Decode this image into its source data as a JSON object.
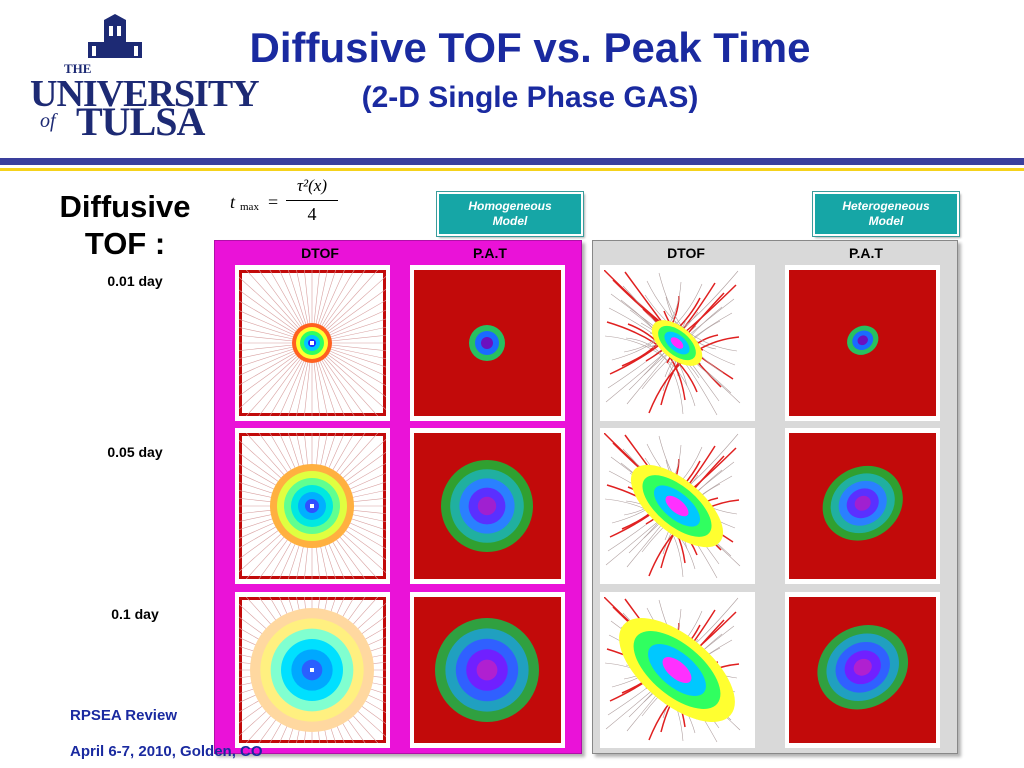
{
  "logo": {
    "the": "THE",
    "university": "UNIVERSITY",
    "of": "of",
    "tulsa": "TULSA"
  },
  "title": "Diffusive TOF vs. Peak Time",
  "subtitle": "(2-D Single Phase GAS)",
  "left_label": {
    "line1": "Diffusive",
    "line2": "TOF :"
  },
  "formula": {
    "lhs": "t",
    "lhs_sub": "max",
    "eq": "=",
    "numerator": "τ²(x)",
    "denominator": "4"
  },
  "models": {
    "homogeneous": {
      "line1": "Homogeneous",
      "line2": "Model"
    },
    "heterogeneous": {
      "line1": "Heterogeneous",
      "line2": "Model"
    }
  },
  "columns": {
    "dtof": "DTOF",
    "pat": "P.A.T"
  },
  "times": [
    "0.01 day",
    "0.05 day",
    "0.1 day"
  ],
  "footer": {
    "line1": "RPSEA Review",
    "line2": "April 6-7, 2010, Golden, CO"
  },
  "colors": {
    "title": "#1a2aa0",
    "homo_panel": "#ea12d8",
    "hetero_panel": "#d9d9d9",
    "badge": "#16a6a6",
    "field_red": "#c20a0a",
    "bar_blue": "#3a3f9c",
    "bar_yellow": "#f5d21b"
  }
}
